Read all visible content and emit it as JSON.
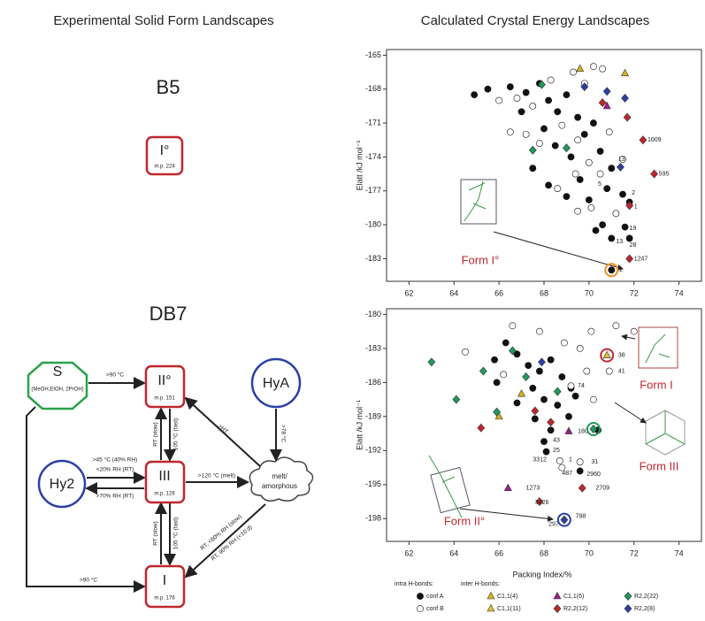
{
  "left": {
    "title": "Experimental Solid Form Landscapes",
    "b5": {
      "label": "B5",
      "form": "I°",
      "mp": "m.p. 224"
    },
    "db7": {
      "label": "DB7",
      "s": {
        "label": "S",
        "sub": "(MeOH,EtOH, 2PrOH)"
      },
      "form_ii": {
        "label": "II°",
        "mp": "m.p. 151"
      },
      "form_iii": {
        "label": "III",
        "mp": "m.p. 126"
      },
      "form_i": {
        "label": "I",
        "mp": "m.p. 176"
      },
      "hya": "HyA",
      "hy2": "Hy2",
      "melt": [
        "melt/",
        "amorphous"
      ],
      "edges": {
        "s_ii": ">90 °C",
        "s_i": ">90 °C",
        "ii_melt": ">HT",
        "hya_melt": ">78 °C",
        "iii_melt": ">120 °C (melt)",
        "hy2_iii_a": ">45 °C (40% RH)",
        "hy2_iii_b": "<20% RH (RT)",
        "iii_hy2": ">70% RH (RT)",
        "ii_iii_slow": "RT (slow)",
        "ii_iii_fast": "105 °C (fast)",
        "iii_i_slow": "RT (slow)",
        "iii_i_fast": "105 °C (fast)",
        "melt_i_a": "RT, <60% RH (slow)",
        "melt_i_b": "RT, 90% RH (<10 d)"
      }
    }
  },
  "chart_data": [
    {
      "type": "scatter",
      "title": "Calculated Crystal Energy Landscapes",
      "ylabel": "Elatt /kJ mol⁻¹",
      "xlim": [
        61,
        75
      ],
      "ylim": [
        -164.5,
        -185
      ],
      "xticks": [
        62,
        64,
        66,
        68,
        70,
        72,
        74
      ],
      "yticks": [
        -165,
        -168,
        -171,
        -174,
        -177,
        -180,
        -183
      ],
      "form_label": "Form I°",
      "series": [
        {
          "color": "#111111",
          "marker": "circle",
          "fill": true,
          "x": [
            64.9,
            65.5,
            66.5,
            67.2,
            67.8,
            68.2,
            68.6,
            69,
            69.5,
            67,
            68,
            69.8,
            70.2,
            68.5,
            69.2,
            70.5,
            71,
            69.6,
            70.8,
            71.5,
            70,
            71.8,
            69,
            70.6,
            71.6,
            70.3,
            71,
            71.8,
            68.2,
            67.5,
            71
          ],
          "values": [
            -168.5,
            -168,
            -167.8,
            -168.3,
            -167.5,
            -169,
            -170,
            -168.5,
            -170.5,
            -170,
            -171.5,
            -172,
            -171,
            -173,
            -174,
            -173.5,
            -175,
            -176,
            -176.8,
            -177.3,
            -177.8,
            -178,
            -177.5,
            -180,
            -180.2,
            -180.5,
            -181.2,
            -181.2,
            -176.5,
            -175,
            -184
          ]
        },
        {
          "color": "#111111",
          "marker": "circle",
          "fill": false,
          "x": [
            66,
            66.8,
            67.5,
            68.3,
            69.3,
            69.8,
            70.2,
            70.6,
            69.5,
            68.8,
            67.8,
            70,
            70.5,
            69.4,
            68.6,
            70.1,
            69.5,
            71.2,
            71.5,
            67.2,
            66.5,
            70.9
          ],
          "values": [
            -169,
            -168.8,
            -169.5,
            -167.2,
            -166.5,
            -167.5,
            -166,
            -166.2,
            -172.5,
            -171.2,
            -172.8,
            -174.5,
            -175.5,
            -175.5,
            -176.8,
            -178.5,
            -178.8,
            -179,
            -174.2,
            -172,
            -171.8,
            -171.8
          ]
        },
        {
          "color": "#d8b21c",
          "marker": "triangle",
          "fill": true,
          "x": [
            71.6,
            69.6
          ],
          "values": [
            -166.6,
            -166.2
          ]
        },
        {
          "color": "#9b1f8c",
          "marker": "triangle",
          "fill": true,
          "x": [
            70.8
          ],
          "values": [
            -169.5
          ]
        },
        {
          "color": "#c0272d",
          "marker": "diamond",
          "fill": true,
          "x": [
            71.7,
            72.4,
            72.9,
            71.8,
            71.8,
            70.6
          ],
          "values": [
            -170.5,
            -172.5,
            -175.5,
            -178.3,
            -183,
            -169.2
          ]
        },
        {
          "color": "#1f9a5a",
          "marker": "diamond",
          "fill": true,
          "x": [
            67.9,
            67.5,
            69
          ],
          "values": [
            -167.6,
            -173.4,
            -173.2
          ]
        },
        {
          "color": "#2b3fa8",
          "marker": "diamond",
          "fill": true,
          "x": [
            71.6,
            70.8,
            71.4,
            69.8
          ],
          "values": [
            -168.8,
            -168.2,
            -174.9,
            -167.8
          ]
        }
      ],
      "annotations": [
        {
          "text": "1009",
          "x": 72.6,
          "y": -172.5
        },
        {
          "text": "595",
          "x": 73.1,
          "y": -175.5
        },
        {
          "text": "5",
          "x": 70.4,
          "y": -176.4
        },
        {
          "text": "2",
          "x": 71.9,
          "y": -177.2
        },
        {
          "text": "1",
          "x": 72,
          "y": -178.4
        },
        {
          "text": "19",
          "x": 71.8,
          "y": -180.3
        },
        {
          "text": "13",
          "x": 71.2,
          "y": -181.5
        },
        {
          "text": "28",
          "x": 71.8,
          "y": -181.8
        },
        {
          "text": "1247",
          "x": 72,
          "y": -183
        },
        {
          "text": "11",
          "x": 71.2,
          "y": -184
        },
        {
          "text": "13",
          "x": 71.3,
          "y": -174.2
        }
      ],
      "highlights": [
        {
          "x": 71,
          "y": -184,
          "color": "#f0901e"
        }
      ]
    },
    {
      "type": "scatter",
      "xlabel": "Packing Index/%",
      "ylabel": "Elatt /kJ mol⁻¹",
      "xlim": [
        61,
        75
      ],
      "ylim": [
        -179.5,
        -200
      ],
      "xticks": [
        62,
        64,
        66,
        68,
        70,
        72,
        74
      ],
      "yticks": [
        -180,
        -183,
        -186,
        -189,
        -192,
        -195,
        -198
      ],
      "form_labels": [
        "Form I",
        "Form III",
        "Form II°"
      ],
      "legend_headings": [
        "intra H-bonds:",
        "inter H-bonds:"
      ],
      "series": [
        {
          "name": "conf A",
          "color": "#111111",
          "marker": "circle",
          "fill": true,
          "x": [
            65.8,
            66.3,
            66.8,
            67.3,
            67.8,
            68.3,
            68.8,
            69.2,
            67.5,
            68,
            68.6,
            69.1,
            66.8,
            67.6,
            68.3,
            69.4,
            68,
            68.1,
            69.6,
            70.4,
            65.9
          ],
          "values": [
            -184,
            -182.5,
            -183.5,
            -184.5,
            -185,
            -184,
            -185.5,
            -186.5,
            -186.5,
            -187.5,
            -188,
            -189,
            -187.8,
            -189.2,
            -190.2,
            -187.2,
            -191.2,
            -192.1,
            -193.8,
            -190.2,
            -186
          ]
        },
        {
          "name": "conf B",
          "color": "#111111",
          "marker": "circle",
          "fill": false,
          "x": [
            66.6,
            67.8,
            68.9,
            69.6,
            70.1,
            71.2,
            72,
            69.9,
            70.9,
            66.2,
            69.2,
            68.7,
            68.8,
            69.6,
            64.5,
            70.2
          ],
          "values": [
            -181,
            -181.5,
            -182.5,
            -183,
            -181.5,
            -181,
            -181.5,
            -185,
            -185,
            -185.3,
            -186.3,
            -192.9,
            -193.5,
            -193,
            -183.3,
            -187.5
          ]
        },
        {
          "name": "C1,1(4)",
          "color": "#d8b21c",
          "marker": "triangle",
          "fill": true,
          "x": [
            66,
            67
          ],
          "values": [
            -189,
            -187
          ]
        },
        {
          "name": "C1,1(11)",
          "color": "#e0c030",
          "marker": "triangle",
          "fill": true,
          "x": [
            70.8
          ],
          "values": [
            -183.6
          ]
        },
        {
          "name": "C1,1(6)",
          "color": "#9b1f8c",
          "marker": "triangle",
          "fill": true,
          "x": [
            66.4,
            69.1
          ],
          "values": [
            -195.3,
            -190.3
          ]
        },
        {
          "name": "R2,2(12)",
          "color": "#c0272d",
          "marker": "diamond",
          "fill": true,
          "x": [
            69.7,
            67.8,
            65.2,
            68.3,
            67.6
          ],
          "values": [
            -195.3,
            -196.5,
            -190,
            -189.5,
            -188.5
          ]
        },
        {
          "name": "R2,2(22)",
          "color": "#1f9a5a",
          "marker": "diamond",
          "fill": true,
          "x": [
            63,
            64.1,
            65.3,
            66.6,
            67.2,
            68.6,
            70.2,
            65.9
          ],
          "values": [
            -184.2,
            -187.5,
            -185,
            -183.2,
            -185.5,
            -186.8,
            -190.1,
            -188.6
          ]
        },
        {
          "name": "R2,2(8)",
          "color": "#2b3fa8",
          "marker": "diamond",
          "fill": true,
          "x": [
            68.9,
            67.9
          ],
          "values": [
            -198.1,
            -184.2
          ]
        }
      ],
      "annotations": [
        {
          "text": "38",
          "x": 71.3,
          "y": -183.6
        },
        {
          "text": "41",
          "x": 71.3,
          "y": -185
        },
        {
          "text": "74",
          "x": 69.5,
          "y": -186.3
        },
        {
          "text": "180",
          "x": 69.5,
          "y": -190.3
        },
        {
          "text": "43",
          "x": 68.4,
          "y": -191.1
        },
        {
          "text": "25",
          "x": 68.4,
          "y": -192
        },
        {
          "text": "1",
          "x": 69.1,
          "y": -192.8
        },
        {
          "text": "487",
          "x": 68.8,
          "y": -194
        },
        {
          "text": "3312",
          "x": 67.5,
          "y": -192.8
        },
        {
          "text": "31",
          "x": 70.1,
          "y": -193
        },
        {
          "text": "2960",
          "x": 69.9,
          "y": -194.1
        },
        {
          "text": "2709",
          "x": 70.3,
          "y": -195.3
        },
        {
          "text": "3426",
          "x": 67.6,
          "y": -196.6
        },
        {
          "text": "1273",
          "x": 67.2,
          "y": -195.3
        },
        {
          "text": "798",
          "x": 69.4,
          "y": -197.8
        },
        {
          "text": "297",
          "x": 68.2,
          "y": -198.5
        }
      ],
      "highlights": [
        {
          "x": 70.8,
          "y": -183.6,
          "color": "#c0272d"
        },
        {
          "x": 70.2,
          "y": -190.1,
          "color": "#1f9a5a"
        },
        {
          "x": 68.9,
          "y": -198.1,
          "color": "#2b3fa8"
        }
      ]
    }
  ]
}
